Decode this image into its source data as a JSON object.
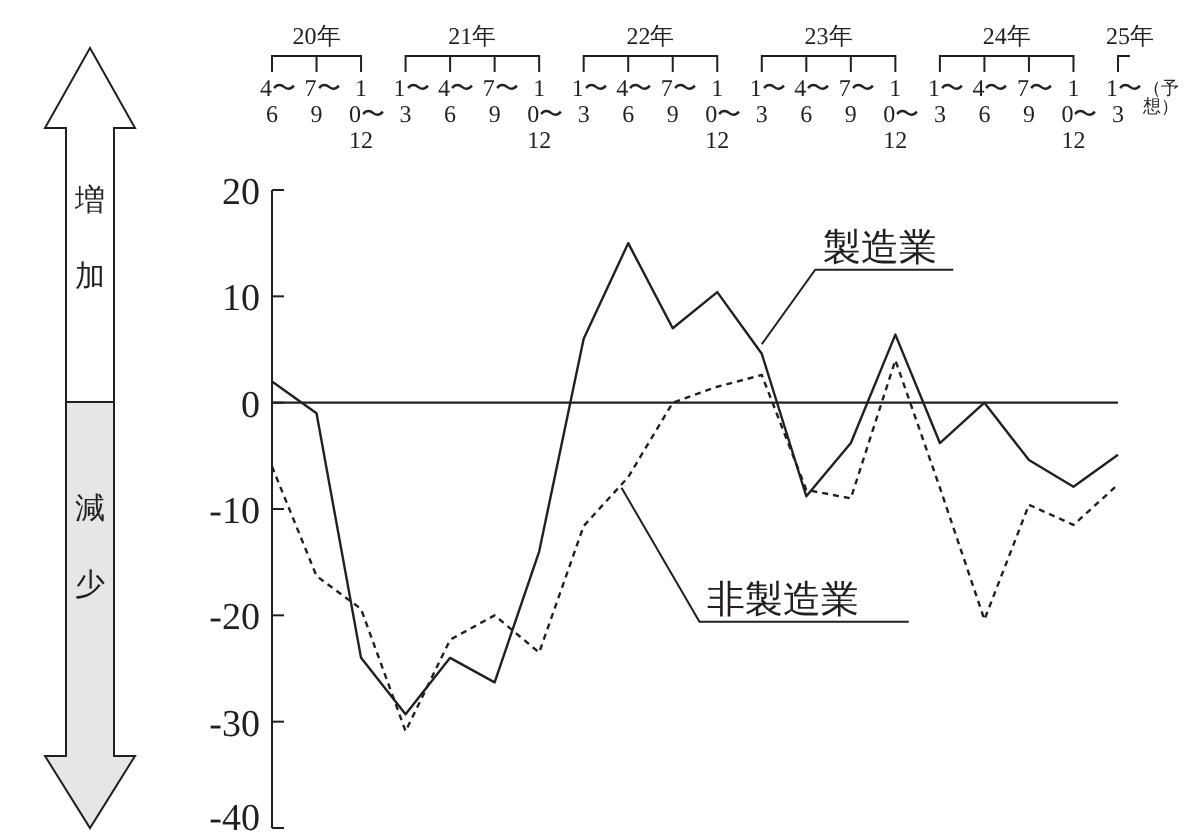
{
  "chart_data": {
    "type": "line",
    "categories": [
      "4〜6",
      "7〜9",
      "10〜12",
      "1〜3",
      "4〜6",
      "7〜9",
      "10〜12",
      "1〜3",
      "4〜6",
      "7〜9",
      "10〜12",
      "1〜3",
      "4〜6",
      "7〜9",
      "10〜12",
      "1〜3",
      "4〜6",
      "7〜9",
      "10〜12",
      "1〜3"
    ],
    "series": [
      {
        "name": "製造業",
        "color": "#231f20",
        "line_style": "solid",
        "values": [
          2,
          -1,
          -24,
          -29.3,
          -24,
          -26.3,
          -14,
          6,
          15,
          7,
          10.4,
          4.6,
          -8.8,
          -3.8,
          6.4,
          -3.8,
          0,
          -5.4,
          -7.9,
          -4.9
        ]
      },
      {
        "name": "非製造業",
        "color": "#231f20",
        "line_style": "dashed",
        "values": [
          -6,
          -16.3,
          -19.4,
          -30.9,
          -22.3,
          -20,
          -23.5,
          -11.6,
          -7,
          0,
          1.5,
          2.6,
          -8.2,
          -9,
          4,
          -8,
          -20.4,
          -9.6,
          -11.5,
          -7.7
        ]
      }
    ],
    "ylim": [
      -40,
      20
    ],
    "yticks": [
      -40,
      -30,
      -20,
      -10,
      0,
      10,
      20
    ],
    "ref_lines": [
      {
        "axis": "y",
        "value": 0,
        "color": "#231f20"
      }
    ],
    "annotations": [
      "20年",
      "21年",
      "22年",
      "23年",
      "24年",
      "25年",
      "（予想）",
      "増加",
      "減少"
    ],
    "grid": false,
    "legend": false,
    "marker": "none"
  }
}
